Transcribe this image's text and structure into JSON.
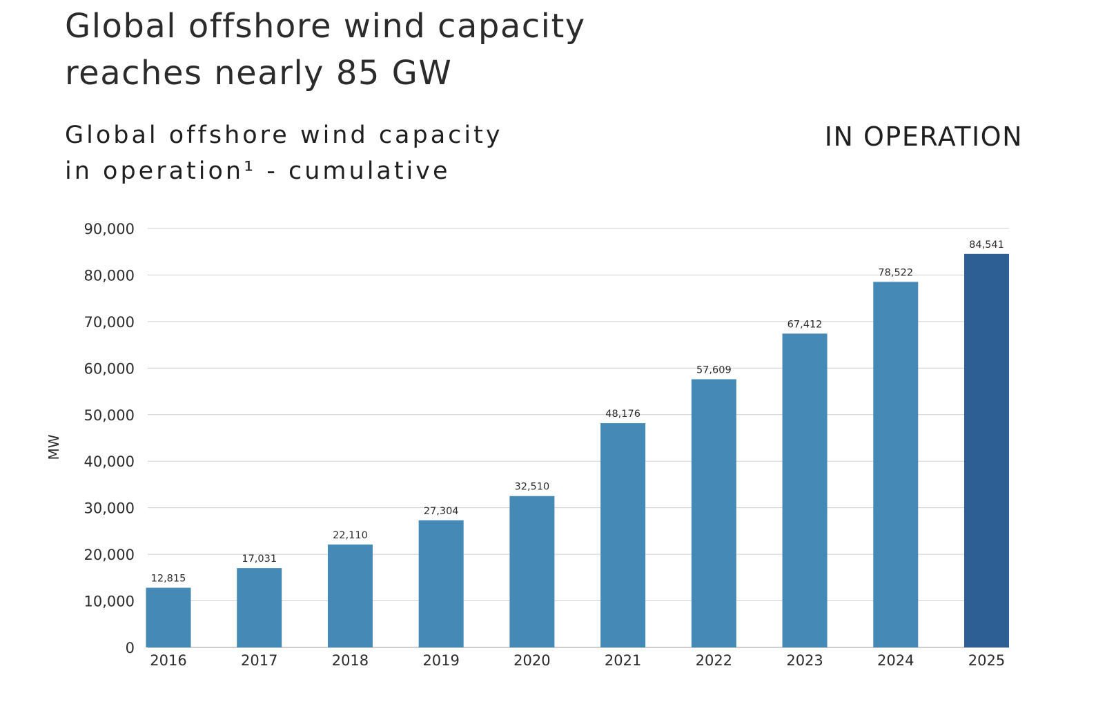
{
  "header": {
    "headline_line1": "Global offshore wind capacity",
    "headline_line2": "reaches nearly 85 GW",
    "subtitle_line1": "Global offshore wind capacity",
    "subtitle_line2": "in operation¹ - cumulative",
    "tag": "IN OPERATION"
  },
  "colors": {
    "bar": "#4589b6",
    "bar_highlight": "#2e5f94",
    "grid": "#cfcfcf",
    "text": "#2b2b2b"
  },
  "chart_data": {
    "type": "bar",
    "title": "Global offshore wind capacity in operation¹ - cumulative",
    "xlabel": "",
    "ylabel": "MW",
    "ylim": [
      0,
      90000
    ],
    "yticks": [
      0,
      10000,
      20000,
      30000,
      40000,
      50000,
      60000,
      70000,
      80000,
      90000
    ],
    "ytick_labels": [
      "0",
      "10,000",
      "20,000",
      "30,000",
      "40,000",
      "50,000",
      "60,000",
      "70,000",
      "80,000",
      "90,000"
    ],
    "grid": true,
    "legend": "none",
    "highlighted_category": "2025",
    "categories": [
      "2016",
      "2017",
      "2018",
      "2019",
      "2020",
      "2021",
      "2022",
      "2023",
      "2024",
      "2025"
    ],
    "values": [
      12815,
      17031,
      22110,
      27304,
      32510,
      48176,
      57609,
      67412,
      78522,
      84541
    ],
    "value_labels": [
      "12,815",
      "17,031",
      "22,110",
      "27,304",
      "32,510",
      "48,176",
      "57,609",
      "67,412",
      "78,522",
      "84,541"
    ]
  }
}
